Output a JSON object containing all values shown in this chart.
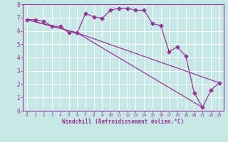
{
  "xlabel": "Windchill (Refroidissement éolien,°C)",
  "bg_color": "#c8e8e8",
  "line_color": "#993399",
  "grid_color": "#ffffff",
  "xlim": [
    -0.5,
    23.5
  ],
  "ylim": [
    0,
    8
  ],
  "xticks": [
    0,
    1,
    2,
    3,
    4,
    5,
    6,
    7,
    8,
    9,
    10,
    11,
    12,
    13,
    14,
    15,
    16,
    17,
    18,
    19,
    20,
    21,
    22,
    23
  ],
  "yticks": [
    0,
    1,
    2,
    3,
    4,
    5,
    6,
    7,
    8
  ],
  "series": [
    [
      0,
      6.85
    ],
    [
      1,
      6.85
    ],
    [
      2,
      6.7
    ],
    [
      3,
      6.35
    ],
    [
      4,
      6.35
    ],
    [
      5,
      5.85
    ],
    [
      6,
      5.85
    ],
    [
      7,
      7.3
    ],
    [
      8,
      7.05
    ],
    [
      9,
      6.95
    ],
    [
      10,
      7.55
    ],
    [
      11,
      7.7
    ],
    [
      12,
      7.7
    ],
    [
      13,
      7.55
    ],
    [
      14,
      7.55
    ],
    [
      15,
      6.55
    ],
    [
      16,
      6.4
    ],
    [
      17,
      4.45
    ],
    [
      18,
      4.8
    ],
    [
      19,
      4.1
    ],
    [
      20,
      1.35
    ],
    [
      21,
      0.25
    ],
    [
      22,
      1.55
    ],
    [
      23,
      2.1
    ]
  ],
  "series2": [
    [
      0,
      6.85
    ],
    [
      6,
      5.85
    ],
    [
      23,
      2.1
    ]
  ],
  "series3": [
    [
      0,
      6.85
    ],
    [
      6,
      5.85
    ],
    [
      21,
      0.25
    ]
  ],
  "marker_size": 2.5,
  "linewidth": 0.9
}
